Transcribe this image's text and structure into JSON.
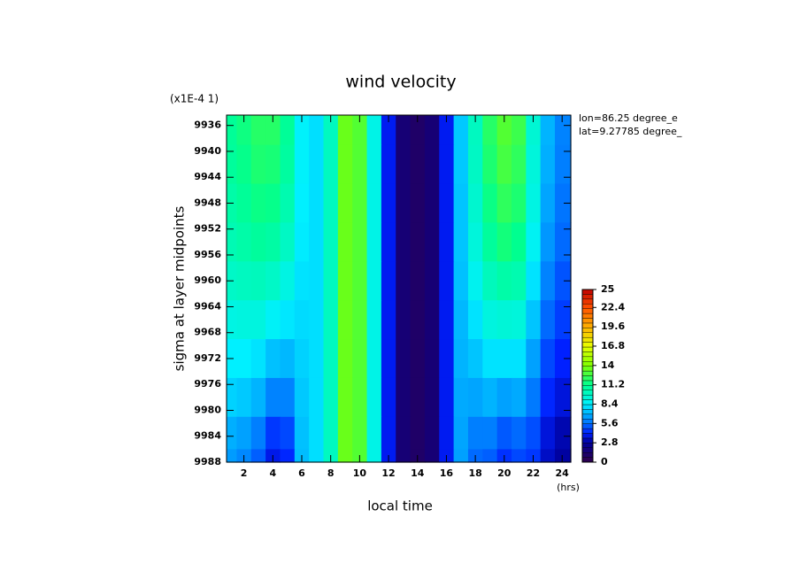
{
  "chart_data": {
    "type": "heatmap",
    "title": "wind velocity",
    "value_units": "(x1E-4 1)",
    "x_label": "local time",
    "x_units": "(hrs)",
    "y_label": "sigma at layer midpoints",
    "annotations": [
      "lon=86.25 degree_e",
      "lat=9.27785 degree_"
    ],
    "x": [
      1,
      2,
      3,
      4,
      5,
      6,
      7,
      8,
      9,
      10,
      11,
      12,
      13,
      14,
      15,
      16,
      17,
      18,
      19,
      20,
      21,
      22,
      23,
      24
    ],
    "y": [
      9936,
      9942,
      9948,
      9954,
      9960,
      9966,
      9972,
      9978,
      9984,
      9988
    ],
    "z": [
      [
        11,
        11.5,
        12,
        12,
        11,
        8.5,
        8,
        10,
        13.5,
        13,
        9,
        4,
        1.5,
        1,
        1.5,
        4,
        7.5,
        10,
        12,
        13,
        12.5,
        9.5,
        7,
        6
      ],
      [
        10.9,
        11.3,
        11.8,
        11.7,
        10.8,
        8.5,
        8,
        10,
        13.5,
        13,
        9,
        4,
        1.5,
        1,
        1.5,
        4,
        7.5,
        9.9,
        11.8,
        12.7,
        12.2,
        9.3,
        6.9,
        5.9
      ],
      [
        10.6,
        11,
        11.4,
        11.3,
        10.4,
        8.4,
        8,
        10,
        13.5,
        13,
        9,
        4,
        1.5,
        1,
        1.5,
        4,
        7.4,
        9.6,
        11.4,
        12.2,
        11.8,
        9.1,
        6.7,
        5.7
      ],
      [
        10.3,
        10.6,
        10.9,
        10.7,
        9.9,
        8.3,
        8,
        10,
        13.5,
        13,
        9,
        4,
        1.5,
        1,
        1.5,
        4,
        7.4,
        9.3,
        10.9,
        11.6,
        11.2,
        8.7,
        6.4,
        5.5
      ],
      [
        9.8,
        10,
        10.1,
        9.8,
        9.1,
        8.1,
        8,
        10,
        13.5,
        13,
        9,
        4,
        1.5,
        1,
        1.5,
        4,
        7.3,
        8.8,
        10.1,
        10.6,
        10.4,
        8.1,
        6,
        5.1
      ],
      [
        9.1,
        9.2,
        9.2,
        8.6,
        8.2,
        7.9,
        8,
        10,
        13.5,
        13,
        9,
        4,
        1.5,
        1,
        1.5,
        4,
        7.1,
        8.1,
        9.2,
        9.4,
        9.3,
        7.4,
        5.5,
        4.7
      ],
      [
        8.4,
        8.4,
        8.1,
        7.3,
        7.1,
        7.7,
        8,
        10,
        13.5,
        13,
        9,
        4,
        1.5,
        1,
        1.5,
        4,
        7,
        7.4,
        8.1,
        8.1,
        8.1,
        6.6,
        4.9,
        4.2
      ],
      [
        7.7,
        7.5,
        7,
        6,
        6,
        7.5,
        8,
        10,
        13.5,
        13,
        9,
        4,
        1.5,
        1,
        1.5,
        4,
        6.8,
        6.7,
        7,
        6.6,
        6.8,
        5.8,
        4.3,
        3.7
      ],
      [
        6.9,
        6.6,
        5.9,
        4.6,
        4.9,
        7.3,
        8,
        10,
        13.5,
        13,
        9,
        4,
        1.5,
        1,
        1.5,
        4,
        6.7,
        5.9,
        5.9,
        5.2,
        5.5,
        5,
        3.7,
        3.1
      ],
      [
        6.5,
        6.1,
        5.3,
        3.9,
        4.3,
        7.2,
        8,
        10,
        13.5,
        13,
        9,
        4,
        1.5,
        1,
        1.5,
        4,
        6.6,
        5.5,
        5.3,
        4.5,
        4.9,
        4.6,
        3.4,
        2.9
      ]
    ],
    "xlim": [
      0.8,
      24.6
    ],
    "xticks": [
      2,
      4,
      6,
      8,
      10,
      12,
      14,
      16,
      18,
      20,
      22,
      24
    ],
    "ylim": [
      9934.4,
      9988
    ],
    "yticks": [
      9936,
      9940,
      9944,
      9948,
      9952,
      9956,
      9960,
      9964,
      9968,
      9972,
      9976,
      9980,
      9984,
      9988
    ],
    "zlim": [
      0,
      25
    ],
    "zticks": [
      0,
      2.8,
      5.6,
      8.4,
      11.2,
      14,
      16.8,
      19.6,
      22.4,
      25
    ],
    "colorscale": [
      [
        0,
        "#30004a"
      ],
      [
        2.8,
        "#00009a"
      ],
      [
        4.2,
        "#0020ff"
      ],
      [
        5.6,
        "#0070ff"
      ],
      [
        7,
        "#00b4ff"
      ],
      [
        8.4,
        "#00f0ff"
      ],
      [
        11.2,
        "#00ff90"
      ],
      [
        14,
        "#80ff00"
      ],
      [
        16.8,
        "#e8ff00"
      ],
      [
        19.6,
        "#ffb000"
      ],
      [
        22.4,
        "#ff5000"
      ],
      [
        25,
        "#c00000"
      ]
    ]
  }
}
